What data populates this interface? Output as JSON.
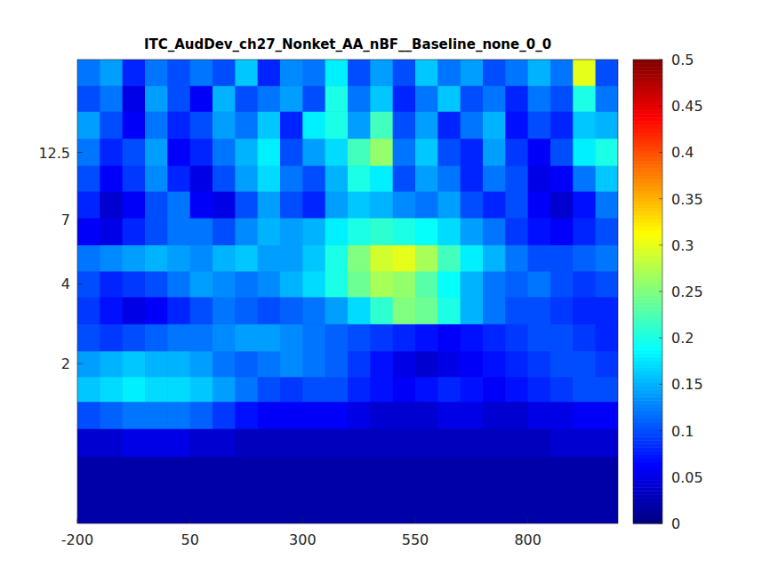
{
  "chart_data": {
    "type": "heatmap",
    "title": "ITC_AudDev_ch27_Nonket_AA_nBF__Baseline_none_0_0",
    "log": "y",
    "xlim": [
      -200,
      1000
    ],
    "xticks": [
      -200,
      50,
      300,
      550,
      800
    ],
    "ylim": [
      0.5,
      28
    ],
    "yticks": [
      2,
      4,
      7,
      12.5
    ],
    "x": [
      -175,
      -125,
      -75,
      -25,
      25,
      75,
      125,
      175,
      225,
      275,
      325,
      375,
      425,
      475,
      525,
      575,
      625,
      675,
      725,
      775,
      825,
      875,
      925,
      975
    ],
    "y": [
      0.6,
      0.8,
      1.0,
      1.3,
      1.6,
      2.0,
      2.5,
      3.2,
      4.0,
      5.0,
      6.3,
      8.0,
      10,
      12.5,
      16,
      20,
      25
    ],
    "cells": [
      [
        0.02,
        0.02,
        0.02,
        0.02,
        0.02,
        0.02,
        0.02,
        0.02,
        0.02,
        0.02,
        0.02,
        0.02,
        0.02,
        0.02,
        0.02,
        0.02,
        0.02,
        0.02,
        0.02,
        0.02,
        0.02,
        0.02,
        0.02,
        0.02
      ],
      [
        0.02,
        0.02,
        0.02,
        0.02,
        0.02,
        0.02,
        0.02,
        0.02,
        0.02,
        0.02,
        0.02,
        0.02,
        0.02,
        0.02,
        0.02,
        0.02,
        0.02,
        0.02,
        0.02,
        0.02,
        0.02,
        0.02,
        0.02,
        0.02
      ],
      [
        0.04,
        0.04,
        0.05,
        0.05,
        0.05,
        0.04,
        0.04,
        0.03,
        0.03,
        0.03,
        0.03,
        0.03,
        0.03,
        0.03,
        0.03,
        0.03,
        0.03,
        0.03,
        0.03,
        0.03,
        0.03,
        0.04,
        0.04,
        0.04
      ],
      [
        0.1,
        0.11,
        0.12,
        0.12,
        0.12,
        0.11,
        0.09,
        0.07,
        0.06,
        0.06,
        0.06,
        0.06,
        0.05,
        0.04,
        0.04,
        0.04,
        0.05,
        0.05,
        0.04,
        0.04,
        0.05,
        0.05,
        0.06,
        0.06
      ],
      [
        0.16,
        0.17,
        0.18,
        0.17,
        0.17,
        0.16,
        0.14,
        0.12,
        0.1,
        0.09,
        0.1,
        0.1,
        0.08,
        0.07,
        0.06,
        0.07,
        0.08,
        0.07,
        0.06,
        0.07,
        0.08,
        0.09,
        0.1,
        0.1
      ],
      [
        0.14,
        0.15,
        0.16,
        0.15,
        0.15,
        0.14,
        0.12,
        0.11,
        0.12,
        0.13,
        0.12,
        0.11,
        0.09,
        0.07,
        0.05,
        0.04,
        0.05,
        0.06,
        0.07,
        0.08,
        0.09,
        0.1,
        0.1,
        0.09
      ],
      [
        0.1,
        0.09,
        0.1,
        0.11,
        0.12,
        0.12,
        0.13,
        0.14,
        0.14,
        0.13,
        0.12,
        0.11,
        0.1,
        0.09,
        0.08,
        0.07,
        0.06,
        0.07,
        0.08,
        0.09,
        0.1,
        0.1,
        0.09,
        0.08
      ],
      [
        0.09,
        0.07,
        0.05,
        0.06,
        0.08,
        0.1,
        0.12,
        0.11,
        0.1,
        0.11,
        0.12,
        0.14,
        0.17,
        0.21,
        0.25,
        0.24,
        0.2,
        0.15,
        0.12,
        0.1,
        0.1,
        0.09,
        0.08,
        0.08
      ],
      [
        0.1,
        0.08,
        0.09,
        0.1,
        0.12,
        0.14,
        0.13,
        0.12,
        0.13,
        0.15,
        0.17,
        0.2,
        0.24,
        0.27,
        0.26,
        0.23,
        0.19,
        0.15,
        0.12,
        0.11,
        0.12,
        0.1,
        0.09,
        0.1
      ],
      [
        0.12,
        0.13,
        0.14,
        0.15,
        0.14,
        0.13,
        0.15,
        0.16,
        0.14,
        0.14,
        0.16,
        0.2,
        0.25,
        0.29,
        0.3,
        0.27,
        0.22,
        0.18,
        0.15,
        0.12,
        0.1,
        0.1,
        0.11,
        0.12
      ],
      [
        0.06,
        0.05,
        0.08,
        0.1,
        0.12,
        0.12,
        0.1,
        0.13,
        0.15,
        0.14,
        0.15,
        0.18,
        0.2,
        0.21,
        0.2,
        0.19,
        0.17,
        0.14,
        0.12,
        0.09,
        0.07,
        0.06,
        0.08,
        0.1
      ],
      [
        0.08,
        0.04,
        0.06,
        0.1,
        0.12,
        0.06,
        0.05,
        0.1,
        0.14,
        0.1,
        0.08,
        0.14,
        0.16,
        0.15,
        0.13,
        0.12,
        0.14,
        0.1,
        0.08,
        0.1,
        0.06,
        0.04,
        0.07,
        0.12
      ],
      [
        0.1,
        0.06,
        0.09,
        0.13,
        0.08,
        0.05,
        0.1,
        0.14,
        0.17,
        0.12,
        0.1,
        0.15,
        0.2,
        0.18,
        0.1,
        0.14,
        0.12,
        0.08,
        0.12,
        0.1,
        0.05,
        0.06,
        0.12,
        0.16
      ],
      [
        0.12,
        0.08,
        0.1,
        0.14,
        0.06,
        0.08,
        0.12,
        0.15,
        0.18,
        0.1,
        0.14,
        0.17,
        0.22,
        0.26,
        0.12,
        0.16,
        0.1,
        0.08,
        0.14,
        0.09,
        0.06,
        0.1,
        0.18,
        0.2
      ],
      [
        0.14,
        0.1,
        0.06,
        0.12,
        0.08,
        0.1,
        0.14,
        0.12,
        0.16,
        0.08,
        0.18,
        0.2,
        0.14,
        0.22,
        0.1,
        0.14,
        0.08,
        0.12,
        0.15,
        0.07,
        0.1,
        0.08,
        0.16,
        0.15
      ],
      [
        0.1,
        0.12,
        0.05,
        0.14,
        0.1,
        0.06,
        0.15,
        0.1,
        0.12,
        0.14,
        0.1,
        0.2,
        0.12,
        0.16,
        0.08,
        0.12,
        0.16,
        0.1,
        0.12,
        0.08,
        0.12,
        0.1,
        0.2,
        0.12
      ],
      [
        0.12,
        0.14,
        0.08,
        0.12,
        0.1,
        0.12,
        0.1,
        0.16,
        0.08,
        0.13,
        0.12,
        0.18,
        0.1,
        0.14,
        0.1,
        0.16,
        0.12,
        0.14,
        0.1,
        0.12,
        0.15,
        0.12,
        0.3,
        0.1
      ]
    ],
    "colorbar": {
      "range": [
        0,
        0.5
      ],
      "ticks": [
        0,
        0.05,
        0.1,
        0.15,
        0.2,
        0.25,
        0.3,
        0.35,
        0.4,
        0.45,
        0.5
      ]
    }
  }
}
